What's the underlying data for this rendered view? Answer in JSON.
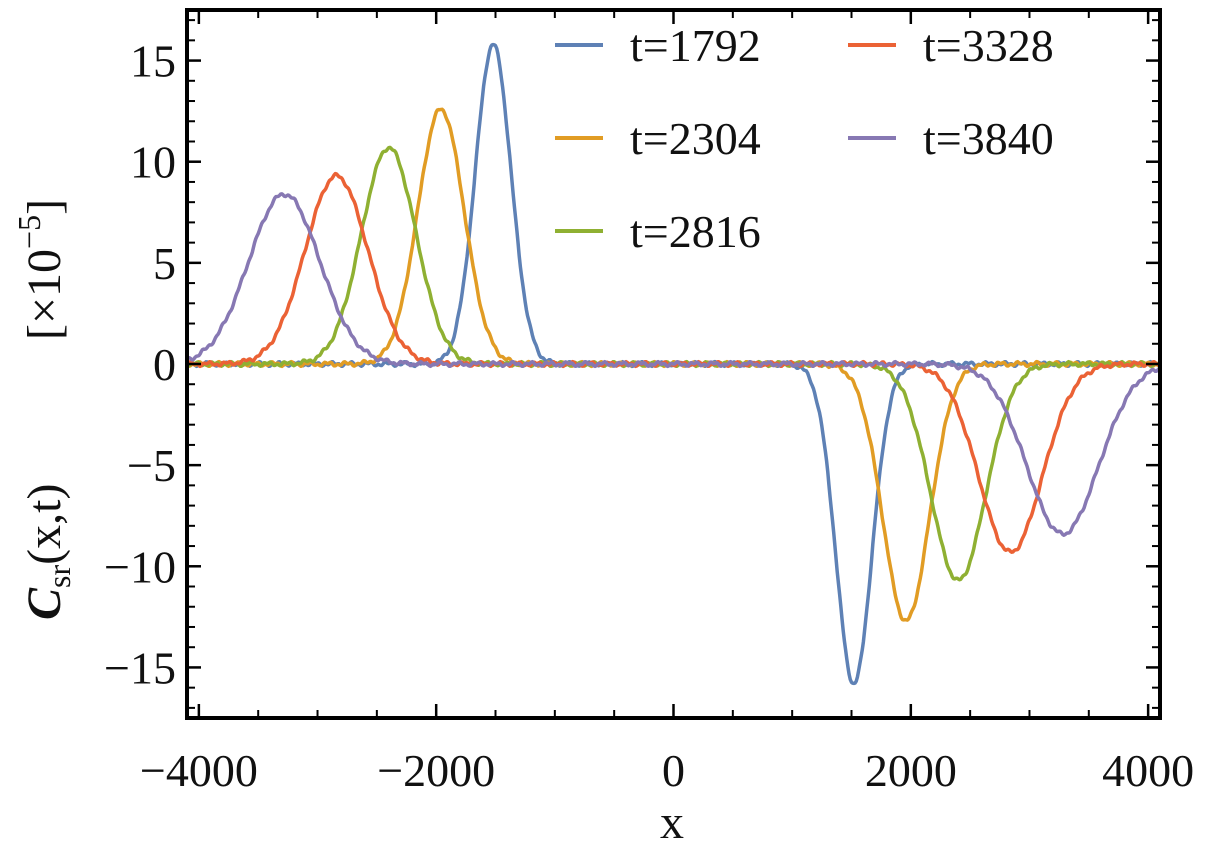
{
  "chart_data": {
    "type": "line",
    "xlabel": "x",
    "ylabel": "C_sr(x,t)",
    "ylabel_main": "C",
    "ylabel_sub": "sr",
    "ylabel_args": "(x,t)",
    "yunit_multiplier": "[×10⁻⁵]",
    "yunit_prefix": "[×10",
    "yunit_exp": "−5",
    "yunit_suffix": "]",
    "xlim": [
      -4100,
      4100
    ],
    "ylim": [
      -17.5,
      17.5
    ],
    "x_ticks": [
      -4000,
      -2000,
      0,
      2000,
      4000
    ],
    "x_tick_labels": [
      "−4000",
      "−2000",
      "0",
      "2000",
      "4000"
    ],
    "y_ticks": [
      -15,
      -10,
      -5,
      0,
      5,
      10,
      15
    ],
    "y_tick_labels": [
      "−15",
      "−10",
      "−5",
      "0",
      "5",
      "10",
      "15"
    ],
    "grid": false,
    "legend_position": "top-right",
    "series": [
      {
        "name": "t=1792",
        "color": "#5e81b5",
        "peak_x": -1520,
        "peak_y": 15.8,
        "trough_x": 1520,
        "trough_y": -15.8,
        "width": 150
      },
      {
        "name": "t=2304",
        "color": "#e19c24",
        "peak_x": -1960,
        "peak_y": 12.6,
        "trough_x": 1960,
        "trough_y": -12.7,
        "width": 195
      },
      {
        "name": "t=2816",
        "color": "#8fb032",
        "peak_x": -2400,
        "peak_y": 10.7,
        "trough_x": 2400,
        "trough_y": -10.7,
        "width": 230
      },
      {
        "name": "t=3328",
        "color": "#eb6235",
        "peak_x": -2840,
        "peak_y": 9.3,
        "trough_x": 2840,
        "trough_y": -9.3,
        "width": 265
      },
      {
        "name": "t=3840",
        "color": "#8778b3",
        "peak_x": -3280,
        "peak_y": 8.4,
        "trough_x": 3280,
        "trough_y": -8.4,
        "width": 300
      }
    ]
  }
}
